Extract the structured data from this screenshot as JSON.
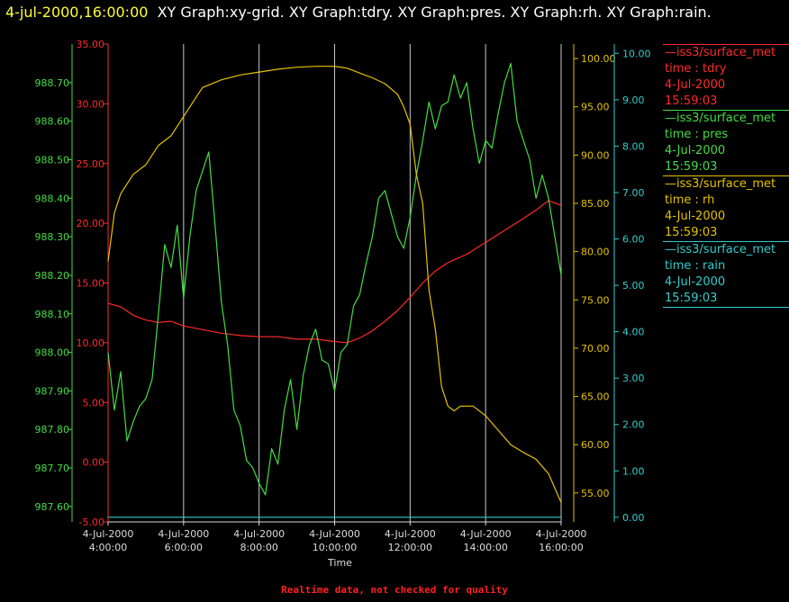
{
  "header": {
    "timestamp": "4-jul-2000,16:00:00",
    "titles": "XY Graph:xy-grid.  XY Graph:tdry.  XY Graph:pres.  XY Graph:rh.  XY Graph:rain."
  },
  "footer": {
    "note": "Realtime data, not checked for quality"
  },
  "legend": [
    {
      "source": "—iss3/surface_met",
      "field": "time : tdry",
      "date": "4-Jul-2000",
      "time": "15:59:03",
      "color": "#ff2a2a"
    },
    {
      "source": "—iss3/surface_met",
      "field": "time : pres",
      "date": "4-Jul-2000",
      "time": "15:59:03",
      "color": "#44dd44"
    },
    {
      "source": "—iss3/surface_met",
      "field": "time : rh",
      "date": "4-Jul-2000",
      "time": "15:59:03",
      "color": "#e6c200"
    },
    {
      "source": "—iss3/surface_met",
      "field": "time : rain",
      "date": "4-Jul-2000",
      "time": "15:59:03",
      "color": "#33cccc"
    }
  ],
  "chart_data": {
    "type": "line",
    "xlabel": "Time",
    "xlim": [
      "2000-07-04 04:00:00",
      "2000-07-04 16:00:00"
    ],
    "x_ticks": [
      "04:00:00",
      "06:00:00",
      "08:00:00",
      "10:00:00",
      "12:00:00",
      "14:00:00",
      "16:00:00"
    ],
    "x_tick_date": "4-Jul-2000",
    "x_tick_times": [
      "4:00:00",
      "6:00:00",
      "8:00:00",
      "10:00:00",
      "12:00:00",
      "14:00:00",
      "16:00:00"
    ],
    "grid": "vertical",
    "axes": {
      "pres": {
        "ylim": [
          987.56,
          988.8
        ],
        "ticks": [
          "987.60",
          "987.70",
          "987.80",
          "987.90",
          "988.00",
          "988.10",
          "988.20",
          "988.30",
          "988.40",
          "988.50",
          "988.60",
          "988.70"
        ],
        "color": "#44dd44"
      },
      "tdry": {
        "ylim": [
          -5,
          35
        ],
        "ticks": [
          "-5.00",
          "0.00",
          "5.00",
          "10.00",
          "15.00",
          "20.00",
          "25.00",
          "30.00",
          "35.00"
        ],
        "color": "#ff2a2a"
      },
      "rh": {
        "ylim": [
          52,
          101.5
        ],
        "ticks": [
          "55.00",
          "60.00",
          "65.00",
          "70.00",
          "75.00",
          "80.00",
          "85.00",
          "90.00",
          "95.00",
          "100.00"
        ],
        "color": "#e6c200"
      },
      "rain": {
        "ylim": [
          -0.1,
          10.2
        ],
        "ticks": [
          "0.00",
          "1.00",
          "2.00",
          "3.00",
          "4.00",
          "5.00",
          "6.00",
          "7.00",
          "8.00",
          "9.00",
          "10.00"
        ],
        "color": "#33cccc"
      }
    },
    "series": [
      {
        "name": "time : tdry",
        "axis": "tdry",
        "x": [
          "2000-07-04 04:00:00",
          "2000-07-04 04:20:00",
          "2000-07-04 04:40:00",
          "2000-07-04 05:00:00",
          "2000-07-04 05:20:00",
          "2000-07-04 05:40:00",
          "2000-07-04 06:00:00",
          "2000-07-04 06:30:00",
          "2000-07-04 07:00:00",
          "2000-07-04 07:30:00",
          "2000-07-04 08:00:00",
          "2000-07-04 08:30:00",
          "2000-07-04 09:00:00",
          "2000-07-04 09:30:00",
          "2000-07-04 10:00:00",
          "2000-07-04 10:20:00",
          "2000-07-04 10:40:00",
          "2000-07-04 11:00:00",
          "2000-07-04 11:20:00",
          "2000-07-04 11:40:00",
          "2000-07-04 12:00:00",
          "2000-07-04 12:20:00",
          "2000-07-04 12:40:00",
          "2000-07-04 13:00:00",
          "2000-07-04 13:30:00",
          "2000-07-04 14:00:00",
          "2000-07-04 14:30:00",
          "2000-07-04 15:00:00",
          "2000-07-04 15:20:00",
          "2000-07-04 15:40:00",
          "2000-07-04 16:00:00"
        ],
        "y": [
          13.3,
          13.0,
          12.3,
          11.9,
          11.7,
          11.8,
          11.4,
          11.1,
          10.8,
          10.6,
          10.5,
          10.5,
          10.3,
          10.3,
          10.1,
          10.0,
          10.4,
          11.0,
          11.8,
          12.7,
          13.8,
          15.0,
          16.0,
          16.7,
          17.4,
          18.4,
          19.4,
          20.4,
          21.1,
          21.9,
          21.5
        ]
      },
      {
        "name": "time : pres",
        "axis": "pres",
        "x": [
          "2000-07-04 04:00:00",
          "2000-07-04 04:10:00",
          "2000-07-04 04:20:00",
          "2000-07-04 04:30:00",
          "2000-07-04 04:40:00",
          "2000-07-04 04:50:00",
          "2000-07-04 05:00:00",
          "2000-07-04 05:10:00",
          "2000-07-04 05:20:00",
          "2000-07-04 05:30:00",
          "2000-07-04 05:40:00",
          "2000-07-04 05:50:00",
          "2000-07-04 06:00:00",
          "2000-07-04 06:10:00",
          "2000-07-04 06:20:00",
          "2000-07-04 06:30:00",
          "2000-07-04 06:40:00",
          "2000-07-04 06:50:00",
          "2000-07-04 07:00:00",
          "2000-07-04 07:10:00",
          "2000-07-04 07:20:00",
          "2000-07-04 07:30:00",
          "2000-07-04 07:40:00",
          "2000-07-04 07:50:00",
          "2000-07-04 08:00:00",
          "2000-07-04 08:10:00",
          "2000-07-04 08:20:00",
          "2000-07-04 08:30:00",
          "2000-07-04 08:40:00",
          "2000-07-04 08:50:00",
          "2000-07-04 09:00:00",
          "2000-07-04 09:10:00",
          "2000-07-04 09:20:00",
          "2000-07-04 09:30:00",
          "2000-07-04 09:40:00",
          "2000-07-04 09:50:00",
          "2000-07-04 10:00:00",
          "2000-07-04 10:10:00",
          "2000-07-04 10:20:00",
          "2000-07-04 10:30:00",
          "2000-07-04 10:40:00",
          "2000-07-04 10:50:00",
          "2000-07-04 11:00:00",
          "2000-07-04 11:10:00",
          "2000-07-04 11:20:00",
          "2000-07-04 11:30:00",
          "2000-07-04 11:40:00",
          "2000-07-04 11:50:00",
          "2000-07-04 12:00:00",
          "2000-07-04 12:10:00",
          "2000-07-04 12:20:00",
          "2000-07-04 12:30:00",
          "2000-07-04 12:40:00",
          "2000-07-04 12:50:00",
          "2000-07-04 13:00:00",
          "2000-07-04 13:10:00",
          "2000-07-04 13:20:00",
          "2000-07-04 13:30:00",
          "2000-07-04 13:40:00",
          "2000-07-04 13:50:00",
          "2000-07-04 14:00:00",
          "2000-07-04 14:10:00",
          "2000-07-04 14:20:00",
          "2000-07-04 14:30:00",
          "2000-07-04 14:40:00",
          "2000-07-04 14:50:00",
          "2000-07-04 15:00:00",
          "2000-07-04 15:10:00",
          "2000-07-04 15:20:00",
          "2000-07-04 15:30:00",
          "2000-07-04 15:40:00",
          "2000-07-04 15:50:00",
          "2000-07-04 16:00:00"
        ],
        "y": [
          988.0,
          987.85,
          987.95,
          987.77,
          987.82,
          987.86,
          987.88,
          987.93,
          988.1,
          988.28,
          988.22,
          988.33,
          988.14,
          988.3,
          988.42,
          988.47,
          988.52,
          988.33,
          988.13,
          988.02,
          987.85,
          987.81,
          987.72,
          987.7,
          987.66,
          987.63,
          987.75,
          987.71,
          987.85,
          987.93,
          987.8,
          987.94,
          988.02,
          988.06,
          987.98,
          987.97,
          987.9,
          988.0,
          988.02,
          988.12,
          988.15,
          988.23,
          988.3,
          988.4,
          988.42,
          988.36,
          988.3,
          988.27,
          988.35,
          988.46,
          988.55,
          988.65,
          988.58,
          988.64,
          988.65,
          988.72,
          988.66,
          988.7,
          988.58,
          988.49,
          988.55,
          988.53,
          988.62,
          988.7,
          988.75,
          988.6,
          988.55,
          988.5,
          988.4,
          988.46,
          988.4,
          988.3,
          988.2
        ]
      },
      {
        "name": "time : rh",
        "axis": "rh",
        "x": [
          "2000-07-04 04:00:00",
          "2000-07-04 04:10:00",
          "2000-07-04 04:20:00",
          "2000-07-04 04:40:00",
          "2000-07-04 05:00:00",
          "2000-07-04 05:20:00",
          "2000-07-04 05:40:00",
          "2000-07-04 06:00:00",
          "2000-07-04 06:30:00",
          "2000-07-04 07:00:00",
          "2000-07-04 07:30:00",
          "2000-07-04 08:00:00",
          "2000-07-04 08:30:00",
          "2000-07-04 09:00:00",
          "2000-07-04 09:30:00",
          "2000-07-04 10:00:00",
          "2000-07-04 10:20:00",
          "2000-07-04 10:40:00",
          "2000-07-04 11:00:00",
          "2000-07-04 11:20:00",
          "2000-07-04 11:40:00",
          "2000-07-04 11:50:00",
          "2000-07-04 12:00:00",
          "2000-07-04 12:10:00",
          "2000-07-04 12:20:00",
          "2000-07-04 12:30:00",
          "2000-07-04 12:40:00",
          "2000-07-04 12:50:00",
          "2000-07-04 13:00:00",
          "2000-07-04 13:10:00",
          "2000-07-04 13:20:00",
          "2000-07-04 13:40:00",
          "2000-07-04 14:00:00",
          "2000-07-04 14:20:00",
          "2000-07-04 14:40:00",
          "2000-07-04 15:00:00",
          "2000-07-04 15:20:00",
          "2000-07-04 15:40:00",
          "2000-07-04 16:00:00"
        ],
        "y": [
          79,
          84,
          86,
          88,
          89,
          91,
          92,
          94,
          97,
          97.8,
          98.3,
          98.6,
          98.9,
          99.1,
          99.2,
          99.2,
          99.0,
          98.5,
          98.0,
          97.4,
          96.3,
          95.0,
          93.2,
          88.0,
          85.0,
          76.0,
          72.0,
          66.0,
          64.0,
          63.5,
          64.0,
          64.0,
          63.0,
          61.5,
          60.0,
          59.2,
          58.5,
          57.0,
          54.0
        ]
      },
      {
        "name": "time : rain",
        "axis": "rain",
        "x": [
          "2000-07-04 04:00:00",
          "2000-07-04 16:00:00"
        ],
        "y": [
          0,
          0
        ]
      }
    ]
  }
}
